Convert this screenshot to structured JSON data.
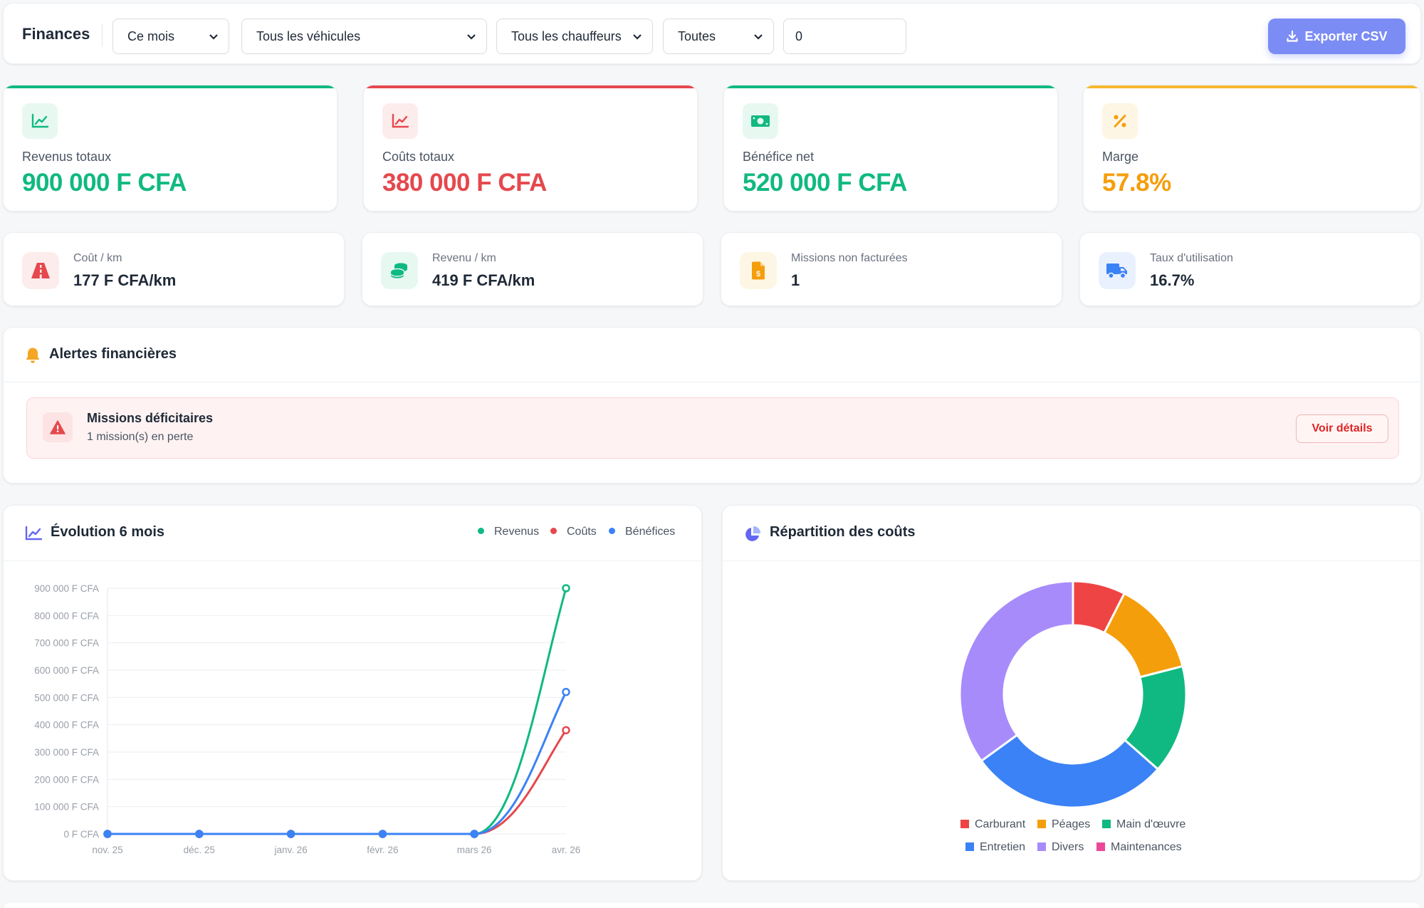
{
  "header": {
    "title": "Finances",
    "filters": {
      "period": "Ce mois",
      "vehicles": "Tous les véhicules",
      "drivers": "Tous les chauffeurs",
      "status": "Toutes",
      "amount": "0"
    },
    "export_label": "Exporter CSV"
  },
  "kpis": [
    {
      "label": "Revenus totaux",
      "value": "900 000 F CFA",
      "color": "#10b981"
    },
    {
      "label": "Coûts totaux",
      "value": "380 000 F CFA",
      "color": "#e5484d"
    },
    {
      "label": "Bénéfice net",
      "value": "520 000 F CFA",
      "color": "#10b981"
    },
    {
      "label": "Marge",
      "value": "57.8%",
      "color": "#f59e0b"
    }
  ],
  "metrics": [
    {
      "label": "Coût / km",
      "value": "177 F CFA/km"
    },
    {
      "label": "Revenu / km",
      "value": "419 F CFA/km"
    },
    {
      "label": "Missions non facturées",
      "value": "1"
    },
    {
      "label": "Taux d'utilisation",
      "value": "16.7%"
    }
  ],
  "alerts": {
    "title": "Alertes financières",
    "items": [
      {
        "title": "Missions déficitaires",
        "subtitle": "1 mission(s) en perte",
        "action": "Voir détails"
      }
    ]
  },
  "evolution": {
    "title": "Évolution 6 mois",
    "legend": [
      "Revenus",
      "Coûts",
      "Bénéfices"
    ]
  },
  "repartition": {
    "title": "Répartition des coûts"
  },
  "chart_data": [
    {
      "type": "line",
      "title": "Évolution 6 mois",
      "x": [
        "nov. 25",
        "déc. 25",
        "janv. 26",
        "févr. 26",
        "mars 26",
        "avr. 26"
      ],
      "y_ticks": [
        "0 F CFA",
        "100 000 F CFA",
        "200 000 F CFA",
        "300 000 F CFA",
        "400 000 F CFA",
        "500 000 F CFA",
        "600 000 F CFA",
        "700 000 F CFA",
        "800 000 F CFA",
        "900 000 F CFA"
      ],
      "ylim": [
        0,
        900000
      ],
      "legend_position": "top-right",
      "series": [
        {
          "name": "Revenus",
          "color": "#10b981",
          "values": [
            0,
            0,
            0,
            0,
            0,
            900000
          ]
        },
        {
          "name": "Coûts",
          "color": "#e5484d",
          "values": [
            0,
            0,
            0,
            0,
            0,
            380000
          ]
        },
        {
          "name": "Bénéfices",
          "color": "#3b82f6",
          "values": [
            0,
            0,
            0,
            0,
            0,
            520000
          ]
        }
      ]
    },
    {
      "type": "pie",
      "title": "Répartition des coûts",
      "legend_position": "bottom",
      "slices": [
        {
          "label": "Carburant",
          "value": 7.5,
          "color": "#ef4444"
        },
        {
          "label": "Péages",
          "value": 13.5,
          "color": "#f59e0b"
        },
        {
          "label": "Main d'œuvre",
          "value": 15.5,
          "color": "#10b981"
        },
        {
          "label": "Entretien",
          "value": 28.5,
          "color": "#3b82f6"
        },
        {
          "label": "Divers",
          "value": 35,
          "color": "#a78bfa"
        },
        {
          "label": "Maintenances",
          "value": 0,
          "color": "#ec4899"
        }
      ]
    }
  ]
}
